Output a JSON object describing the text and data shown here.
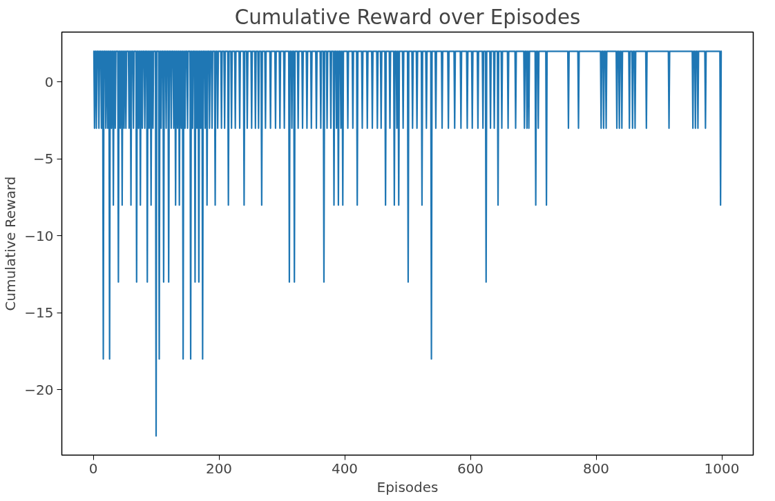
{
  "chart_data": {
    "type": "line",
    "title": "Cumulative Reward over Episodes",
    "xlabel": "Episodes",
    "ylabel": "Cumulative Reward",
    "xlim": [
      -50,
      1050
    ],
    "xticks": [
      0,
      200,
      400,
      600,
      800,
      1000
    ],
    "ylim": [
      -24.25,
      3.25
    ],
    "yticks": [
      {
        "value": -20,
        "label": "−20"
      },
      {
        "value": -15,
        "label": "−15"
      },
      {
        "value": -10,
        "label": "−10"
      },
      {
        "value": -5,
        "label": "−5"
      },
      0
    ],
    "grid": false,
    "line_style": "solid",
    "series": [
      {
        "color": "#1f77b4",
        "x": [
          0,
          1,
          2,
          3,
          4,
          5,
          6,
          8,
          9,
          10,
          12,
          13,
          14,
          15,
          16,
          17,
          19,
          20,
          21,
          22,
          23,
          24,
          25,
          26,
          27,
          28,
          29,
          30,
          31,
          32,
          33,
          34,
          35,
          36,
          39,
          40,
          41,
          42,
          43,
          44,
          45,
          46,
          47,
          48,
          49,
          50,
          51,
          52,
          53,
          56,
          57,
          58,
          59,
          60,
          61,
          63,
          64,
          65,
          68,
          69,
          70,
          71,
          72,
          73,
          74,
          75,
          76,
          77,
          78,
          79,
          81,
          82,
          83,
          85,
          86,
          87,
          88,
          89,
          90,
          91,
          92,
          93,
          94,
          95,
          96,
          99,
          100,
          101,
          104,
          105,
          106,
          107,
          108,
          109,
          111,
          112,
          113,
          115,
          116,
          117,
          119,
          120,
          121,
          123,
          124,
          125,
          127,
          128,
          129,
          130,
          131,
          132,
          133,
          134,
          135,
          136,
          137,
          138,
          139,
          140,
          141,
          142,
          143,
          144,
          145,
          146,
          147,
          149,
          150,
          151,
          154,
          155,
          156,
          157,
          158,
          159,
          161,
          162,
          163,
          164,
          165,
          166,
          167,
          168,
          169,
          170,
          171,
          172,
          173,
          174,
          175,
          177,
          178,
          179,
          180,
          181,
          182,
          184,
          185,
          186,
          188,
          189,
          190,
          193,
          194,
          195,
          197,
          198,
          199,
          203,
          204,
          205,
          208,
          209,
          210,
          214,
          215,
          216,
          219,
          220,
          221,
          225,
          226,
          227,
          232,
          233,
          234,
          239,
          240,
          241,
          244,
          245,
          246,
          251,
          252,
          253,
          257,
          258,
          259,
          262,
          263,
          264,
          267,
          268,
          269,
          273,
          274,
          275,
          281,
          282,
          283,
          289,
          290,
          291,
          296,
          297,
          298,
          303,
          304,
          305,
          311,
          312,
          313,
          315,
          316,
          317,
          319,
          320,
          321,
          325,
          326,
          327,
          332,
          333,
          334,
          339,
          340,
          341,
          346,
          347,
          348,
          354,
          355,
          356,
          361,
          362,
          363,
          366,
          367,
          368,
          371,
          372,
          373,
          377,
          378,
          379,
          382,
          383,
          384,
          386,
          387,
          388,
          389,
          390,
          391,
          393,
          394,
          395,
          396,
          397,
          398,
          404,
          405,
          406,
          412,
          413,
          414,
          419,
          420,
          421,
          427,
          428,
          429,
          435,
          436,
          437,
          443,
          444,
          445,
          451,
          452,
          453,
          457,
          458,
          459,
          464,
          465,
          466,
          471,
          472,
          473,
          478,
          479,
          480,
          482,
          483,
          484,
          485,
          486,
          487,
          492,
          493,
          494,
          500,
          501,
          502,
          507,
          508,
          509,
          514,
          515,
          516,
          522,
          523,
          524,
          529,
          530,
          531,
          537,
          538,
          539,
          544,
          545,
          546,
          554,
          555,
          556,
          564,
          565,
          566,
          574,
          575,
          576,
          584,
          585,
          586,
          594,
          595,
          596,
          602,
          603,
          604,
          611,
          612,
          613,
          619,
          620,
          621,
          624,
          625,
          626,
          631,
          632,
          633,
          637,
          638,
          639,
          643,
          644,
          645,
          649,
          650,
          651,
          659,
          660,
          661,
          671,
          672,
          673,
          685,
          686,
          687,
          689,
          690,
          691,
          692,
          693,
          694,
          703,
          704,
          705,
          707,
          708,
          709,
          720,
          721,
          722,
          755,
          756,
          757,
          771,
          772,
          773,
          807,
          808,
          809,
          811,
          812,
          813,
          815,
          816,
          817,
          832,
          833,
          834,
          836,
          837,
          838,
          840,
          841,
          842,
          852,
          853,
          854,
          857,
          858,
          859,
          861,
          862,
          863,
          879,
          880,
          881,
          915,
          916,
          917,
          953,
          954,
          955,
          957,
          958,
          959,
          961,
          962,
          963,
          973,
          974,
          975,
          997,
          998,
          999,
          1000
        ],
        "values": [
          2,
          2,
          -3,
          2,
          2,
          -3,
          2,
          2,
          -3,
          2,
          2,
          -3,
          2,
          2,
          -18,
          2,
          2,
          -3,
          2,
          2,
          -3,
          2,
          2,
          -18,
          2,
          2,
          -3,
          2,
          2,
          -8,
          2,
          2,
          -3,
          2,
          2,
          -13,
          2,
          2,
          -3,
          2,
          2,
          -8,
          2,
          2,
          -3,
          2,
          2,
          -3,
          2,
          2,
          -3,
          2,
          2,
          -8,
          2,
          2,
          -3,
          2,
          2,
          -13,
          2,
          2,
          -3,
          2,
          2,
          -8,
          2,
          2,
          -3,
          2,
          2,
          -3,
          2,
          2,
          -13,
          2,
          2,
          -3,
          2,
          2,
          -8,
          2,
          2,
          -3,
          2,
          2,
          -23,
          2,
          2,
          -18,
          2,
          2,
          -3,
          2,
          2,
          -13,
          2,
          2,
          -3,
          2,
          2,
          -13,
          2,
          2,
          -3,
          2,
          2,
          -3,
          2,
          2,
          -8,
          2,
          2,
          -3,
          2,
          2,
          -8,
          2,
          2,
          -3,
          2,
          2,
          -18,
          2,
          2,
          -3,
          2,
          2,
          -3,
          2,
          2,
          -18,
          2,
          2,
          -3,
          2,
          2,
          -13,
          2,
          2,
          -3,
          2,
          2,
          -13,
          2,
          2,
          -3,
          2,
          2,
          -18,
          2,
          2,
          -3,
          2,
          2,
          -8,
          2,
          2,
          -3,
          2,
          2,
          -3,
          2,
          2,
          -8,
          2,
          2,
          -3,
          2,
          2,
          -3,
          2,
          2,
          -3,
          2,
          2,
          -8,
          2,
          2,
          -3,
          2,
          2,
          -3,
          2,
          2,
          -3,
          2,
          2,
          -8,
          2,
          2,
          -3,
          2,
          2,
          -3,
          2,
          2,
          -3,
          2,
          2,
          -3,
          2,
          2,
          -8,
          2,
          2,
          -3,
          2,
          2,
          -3,
          2,
          2,
          -3,
          2,
          2,
          -3,
          2,
          2,
          -3,
          2,
          2,
          -13,
          2,
          2,
          -3,
          2,
          2,
          -13,
          2,
          2,
          -3,
          2,
          2,
          -3,
          2,
          2,
          -3,
          2,
          2,
          -3,
          2,
          2,
          -3,
          2,
          2,
          -3,
          2,
          2,
          -13,
          2,
          2,
          -3,
          2,
          2,
          -3,
          2,
          2,
          -8,
          2,
          2,
          -3,
          2,
          2,
          -8,
          2,
          2,
          -3,
          2,
          2,
          -8,
          2,
          2,
          -3,
          2,
          2,
          -3,
          2,
          2,
          -8,
          2,
          2,
          -3,
          2,
          2,
          -3,
          2,
          2,
          -3,
          2,
          2,
          -3,
          2,
          2,
          -3,
          2,
          2,
          -8,
          2,
          2,
          -3,
          2,
          2,
          -8,
          2,
          2,
          -3,
          2,
          2,
          -8,
          2,
          2,
          -3,
          2,
          2,
          -13,
          2,
          2,
          -3,
          2,
          2,
          -3,
          2,
          2,
          -8,
          2,
          2,
          -3,
          2,
          2,
          -18,
          2,
          2,
          -3,
          2,
          2,
          -3,
          2,
          2,
          -3,
          2,
          2,
          -3,
          2,
          2,
          -3,
          2,
          2,
          -3,
          2,
          2,
          -3,
          2,
          2,
          -3,
          2,
          2,
          -3,
          2,
          2,
          -13,
          2,
          2,
          -3,
          2,
          2,
          -3,
          2,
          2,
          -8,
          2,
          2,
          -3,
          2,
          2,
          -3,
          2,
          2,
          -3,
          2,
          2,
          -3,
          2,
          2,
          -3,
          2,
          2,
          -3,
          2,
          2,
          -8,
          2,
          2,
          -3,
          2,
          2,
          -8,
          2,
          2,
          -3,
          2,
          2,
          -3,
          2,
          2,
          -3,
          2,
          2,
          -3,
          2,
          2,
          -3,
          2,
          2,
          -3,
          2,
          2,
          -3,
          2,
          2,
          -3,
          2,
          2,
          -3,
          2,
          2,
          -3,
          2,
          2,
          -3,
          2,
          2,
          -3,
          2,
          2,
          -3,
          2,
          2,
          -3,
          2,
          2,
          -3,
          2,
          2,
          -3,
          2,
          2,
          -3,
          2,
          2,
          -8,
          2,
          2
        ]
      }
    ]
  }
}
